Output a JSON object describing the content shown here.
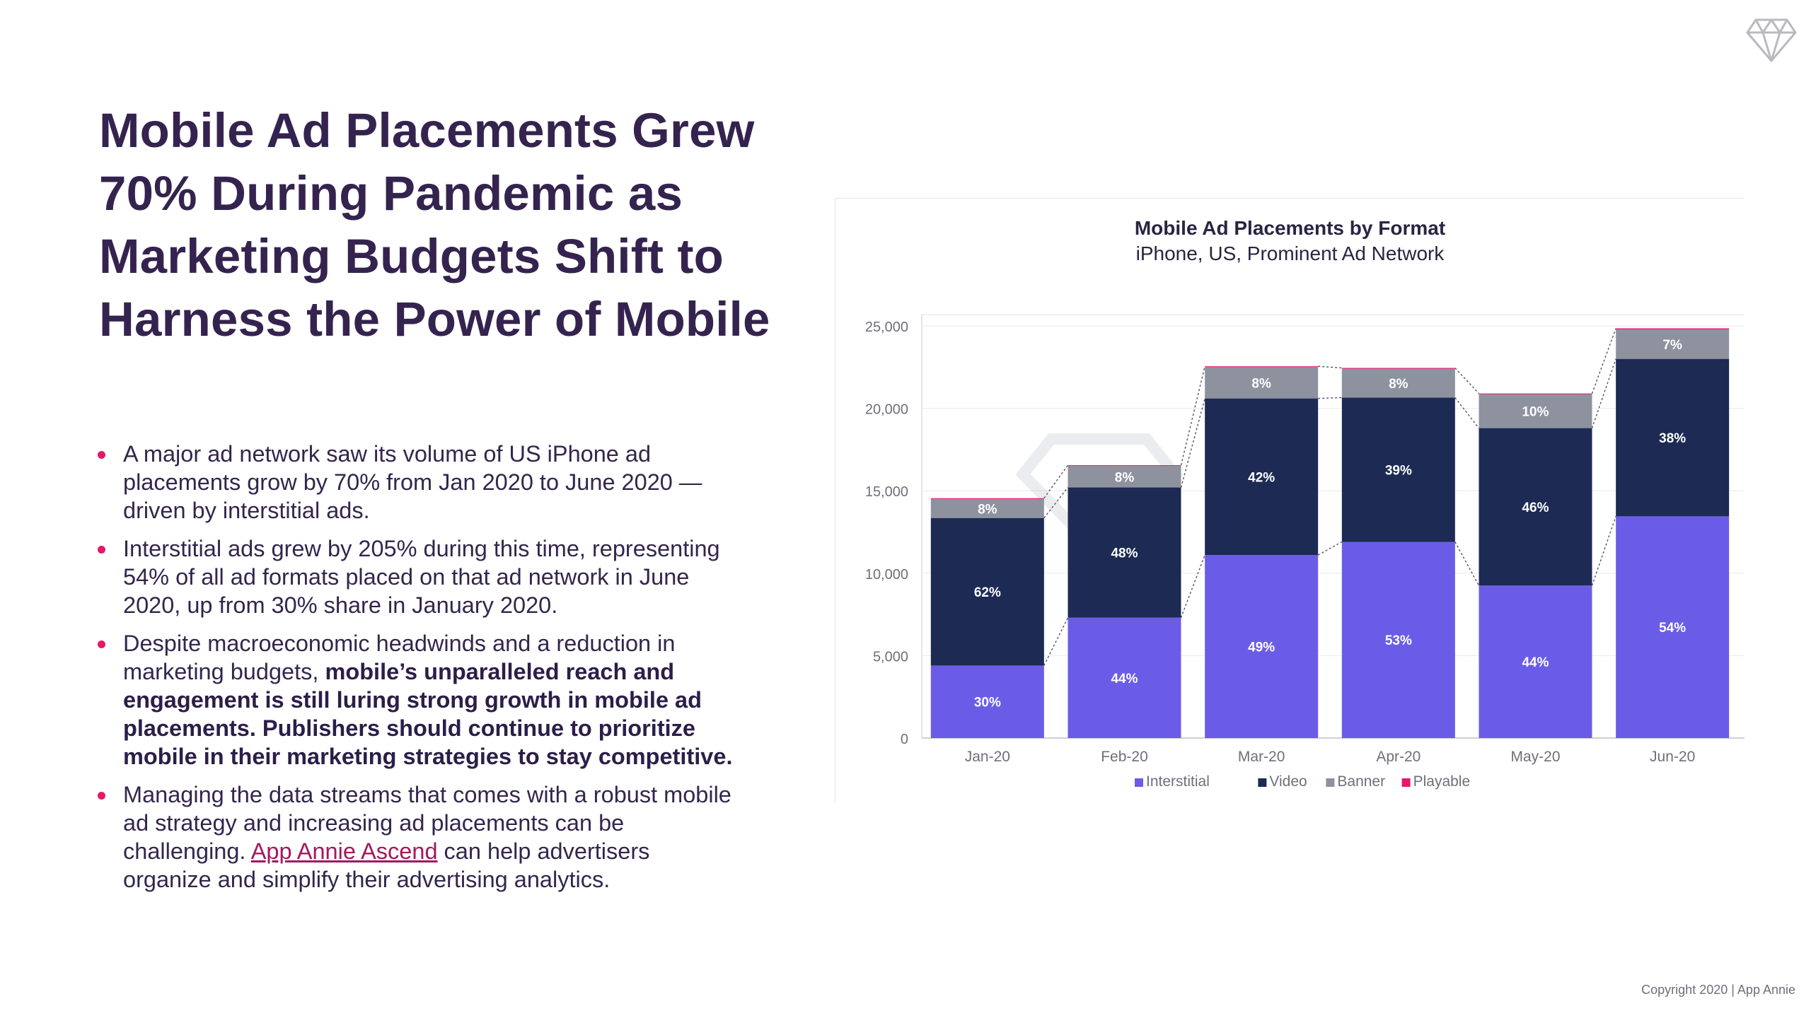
{
  "headline": "Mobile Ad Placements Grew 70% During Pandemic as Marketing Budgets Shift to Harness the Power of Mobile",
  "bullets": [
    {
      "text": "A major ad network saw its volume of US iPhone ad placements grow by 70% from Jan 2020 to June 2020 — driven by interstitial ads."
    },
    {
      "text": "Interstitial ads grew by 205% during this time, representing 54% of all ad formats placed on that ad network in June 2020, up from 30% share in January 2020."
    },
    {
      "text_before": "Despite macroeconomic headwinds and a reduction in marketing budgets, ",
      "bold": "mobile’s unparalleled reach and engagement is still luring strong growth in mobile ad placements. Publishers should continue to prioritize mobile in their marketing strategies to stay competitive."
    },
    {
      "text_before": "Managing the data streams that comes with a robust mobile ad strategy and increasing ad placements can be challenging. ",
      "link": "App Annie Ascend",
      "text_after": " can help advertisers organize and simplify their advertising analytics."
    }
  ],
  "copyright": "Copyright 2020  |  App Annie",
  "logo_icon": "diamond-logo-icon",
  "colors": {
    "interstitial": "#6b5ce7",
    "video": "#1c2a54",
    "banner": "#8e929f",
    "playable": "#e8176a",
    "bullet": "#e8176a",
    "headline": "#35234f"
  },
  "chart_data": {
    "type": "bar",
    "stacked": true,
    "title": "Mobile Ad Placements by Format",
    "subtitle": "iPhone, US, Prominent Ad Network",
    "categories": [
      "Jan-20",
      "Feb-20",
      "Mar-20",
      "Apr-20",
      "May-20",
      "Jun-20"
    ],
    "totals": [
      14550,
      16550,
      22550,
      22450,
      20900,
      24850
    ],
    "series": [
      {
        "name": "Interstitial",
        "color": "#6b5ce7",
        "values": [
          4400,
          7300,
          11100,
          11900,
          9250,
          13450
        ],
        "labels": [
          "30%",
          "44%",
          "49%",
          "53%",
          "44%",
          "54%"
        ]
      },
      {
        "name": "Video",
        "color": "#1c2a54",
        "values": [
          8950,
          7900,
          9500,
          8750,
          9550,
          9550
        ],
        "labels": [
          "62%",
          "48%",
          "42%",
          "39%",
          "46%",
          "38%"
        ]
      },
      {
        "name": "Banner",
        "color": "#8e929f",
        "values": [
          1150,
          1300,
          1900,
          1750,
          2050,
          1780
        ],
        "labels": [
          "8%",
          "8%",
          "8%",
          "8%",
          "10%",
          "7%"
        ]
      },
      {
        "name": "Playable",
        "color": "#e8176a",
        "values": [
          50,
          50,
          50,
          50,
          50,
          70
        ],
        "labels": [
          "",
          "",
          "",
          "",
          "",
          ""
        ]
      }
    ],
    "yticks": [
      "0",
      "5,000",
      "10,000",
      "15,000",
      "20,000",
      "25,000"
    ],
    "ylim": [
      0,
      25000
    ],
    "legend_position": "bottom",
    "grid": true
  }
}
